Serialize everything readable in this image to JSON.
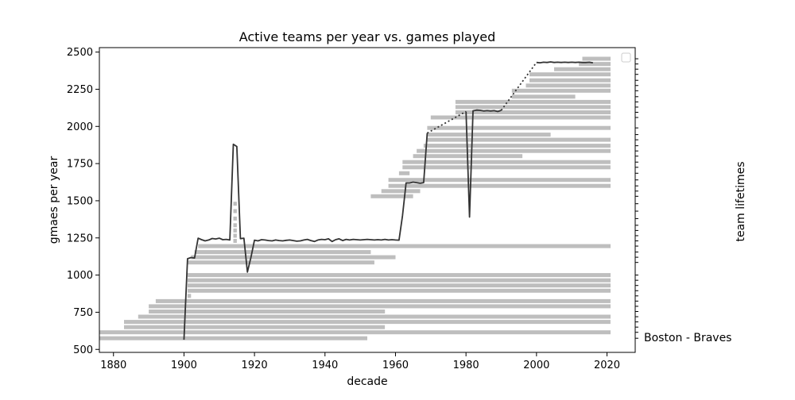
{
  "chart_data": {
    "type": "line",
    "title": "Active teams per year vs. games played",
    "xlabel": "decade",
    "ylabel": "gmaes per year",
    "y2label": "team lifetimes",
    "xlim": [
      1876,
      2028
    ],
    "ylim": [
      480,
      2530
    ],
    "x_ticks": [
      1880,
      1900,
      1920,
      1940,
      1960,
      1980,
      2000,
      2020
    ],
    "y_ticks": [
      500,
      750,
      1000,
      1250,
      1500,
      1750,
      2000,
      2250,
      2500
    ],
    "right_tick_label": "Boston - Braves",
    "legend": "top-right (empty)",
    "grid": false,
    "colors": {
      "line": "#333333",
      "bars": "#bebebe",
      "frame": "#000000"
    },
    "games_per_year": {
      "name": "games per year",
      "x": [
        1900,
        1901,
        1902,
        1903,
        1904,
        1905,
        1906,
        1907,
        1908,
        1909,
        1910,
        1911,
        1912,
        1913,
        1914,
        1915,
        1916,
        1917,
        1918,
        1919,
        1920,
        1921,
        1922,
        1923,
        1924,
        1925,
        1926,
        1927,
        1928,
        1929,
        1930,
        1931,
        1932,
        1933,
        1934,
        1935,
        1936,
        1937,
        1938,
        1939,
        1940,
        1941,
        1942,
        1943,
        1944,
        1945,
        1946,
        1947,
        1948,
        1949,
        1950,
        1951,
        1952,
        1953,
        1954,
        1955,
        1956,
        1957,
        1958,
        1959,
        1960,
        1961,
        1962,
        1963,
        1964,
        1965,
        1966,
        1967,
        1968,
        1969,
        1970,
        1971,
        1972,
        1973,
        1974,
        1975,
        1976,
        1977,
        1978,
        1979,
        1980,
        1981,
        1982,
        1983,
        1984,
        1985,
        1986,
        1987,
        1988,
        1989,
        1990,
        1991,
        1992,
        1993,
        1994,
        1995,
        1996,
        1997,
        1998,
        1999,
        2000,
        2001,
        2002,
        2003,
        2004,
        2005,
        2006,
        2007,
        2008,
        2009,
        2010,
        2011,
        2012,
        2013,
        2014,
        2015,
        2016
      ],
      "y": [
        565,
        1110,
        1118,
        1115,
        1248,
        1238,
        1230,
        1236,
        1246,
        1243,
        1248,
        1238,
        1240,
        1236,
        1880,
        1865,
        1245,
        1248,
        1020,
        1120,
        1235,
        1230,
        1238,
        1236,
        1232,
        1230,
        1236,
        1232,
        1230,
        1234,
        1236,
        1232,
        1228,
        1230,
        1236,
        1240,
        1232,
        1226,
        1236,
        1240,
        1238,
        1244,
        1226,
        1238,
        1244,
        1232,
        1240,
        1236,
        1240,
        1238,
        1236,
        1238,
        1240,
        1238,
        1236,
        1238,
        1236,
        1240,
        1236,
        1238,
        1236,
        1235,
        1400,
        1620,
        1620,
        1625,
        1622,
        1618,
        1622,
        1955,
        1960,
        1970,
        1980,
        1990,
        2000,
        2010,
        2020,
        2030,
        2045,
        2060,
        2100,
        1390,
        2105,
        2110,
        2108,
        2104,
        2106,
        2104,
        2106,
        2100,
        2108,
        2140,
        2180,
        2220,
        2260,
        2300,
        2340,
        2380,
        2410,
        2430,
        2430,
        2428,
        2432,
        2430,
        2434,
        2430,
        2432,
        2430,
        2432,
        2430,
        2432,
        2430,
        2432,
        2430,
        2430,
        2432,
        2428
      ],
      "solid_ranges": [
        [
          1900,
          1969
        ],
        [
          1980,
          1990
        ],
        [
          2000,
          2016
        ]
      ],
      "dotted_ranges": [
        [
          1969,
          1980
        ],
        [
          1990,
          2000
        ]
      ]
    },
    "team_lifetimes": {
      "name": "team lifetimes",
      "rows": [
        {
          "y": 575,
          "start": 1876,
          "end": 1952
        },
        {
          "y": 615,
          "start": 1876,
          "end": 2021
        },
        {
          "y": 650,
          "start": 1883,
          "end": 1957
        },
        {
          "y": 685,
          "start": 1883,
          "end": 2021
        },
        {
          "y": 720,
          "start": 1887,
          "end": 2021
        },
        {
          "y": 755,
          "start": 1890,
          "end": 1957
        },
        {
          "y": 790,
          "start": 1890,
          "end": 2021
        },
        {
          "y": 825,
          "start": 1892,
          "end": 2021
        },
        {
          "y": 860,
          "start": 1901,
          "end": 1902
        },
        {
          "y": 895,
          "start": 1901,
          "end": 2021
        },
        {
          "y": 930,
          "start": 1901,
          "end": 2021
        },
        {
          "y": 965,
          "start": 1901,
          "end": 2021
        },
        {
          "y": 1000,
          "start": 1901,
          "end": 2021
        },
        {
          "y": 1085,
          "start": 1901,
          "end": 1954
        },
        {
          "y": 1120,
          "start": 1902,
          "end": 1960
        },
        {
          "y": 1155,
          "start": 1903,
          "end": 1953
        },
        {
          "y": 1195,
          "start": 1904,
          "end": 2021
        },
        {
          "y": 1230,
          "start": 1914,
          "end": 1915
        },
        {
          "y": 1265,
          "start": 1914,
          "end": 1915
        },
        {
          "y": 1300,
          "start": 1914,
          "end": 1915
        },
        {
          "y": 1335,
          "start": 1914,
          "end": 1915
        },
        {
          "y": 1380,
          "start": 1914,
          "end": 1915
        },
        {
          "y": 1430,
          "start": 1914,
          "end": 1915
        },
        {
          "y": 1480,
          "start": 1914,
          "end": 1915
        },
        {
          "y": 1530,
          "start": 1953,
          "end": 1965
        },
        {
          "y": 1565,
          "start": 1956,
          "end": 1967
        },
        {
          "y": 1600,
          "start": 1958,
          "end": 2021
        },
        {
          "y": 1640,
          "start": 1958,
          "end": 2021
        },
        {
          "y": 1685,
          "start": 1961,
          "end": 1964
        },
        {
          "y": 1725,
          "start": 1962,
          "end": 2021
        },
        {
          "y": 1760,
          "start": 1962,
          "end": 2021
        },
        {
          "y": 1800,
          "start": 1965,
          "end": 1996
        },
        {
          "y": 1835,
          "start": 1966,
          "end": 2021
        },
        {
          "y": 1870,
          "start": 1968,
          "end": 2021
        },
        {
          "y": 1910,
          "start": 1969,
          "end": 2021
        },
        {
          "y": 1945,
          "start": 1969,
          "end": 2004
        },
        {
          "y": 1990,
          "start": 1969,
          "end": 2021
        },
        {
          "y": 2060,
          "start": 1970,
          "end": 2021
        },
        {
          "y": 2095,
          "start": 1977,
          "end": 2021
        },
        {
          "y": 2130,
          "start": 1977,
          "end": 2021
        },
        {
          "y": 2165,
          "start": 1977,
          "end": 2021
        },
        {
          "y": 2200,
          "start": 1993,
          "end": 2011
        },
        {
          "y": 2240,
          "start": 1993,
          "end": 2021
        },
        {
          "y": 2275,
          "start": 1997,
          "end": 2021
        },
        {
          "y": 2310,
          "start": 1998,
          "end": 2021
        },
        {
          "y": 2350,
          "start": 1998,
          "end": 2021
        },
        {
          "y": 2385,
          "start": 2005,
          "end": 2021
        },
        {
          "y": 2420,
          "start": 2012,
          "end": 2021
        },
        {
          "y": 2455,
          "start": 2013,
          "end": 2021
        }
      ]
    }
  }
}
